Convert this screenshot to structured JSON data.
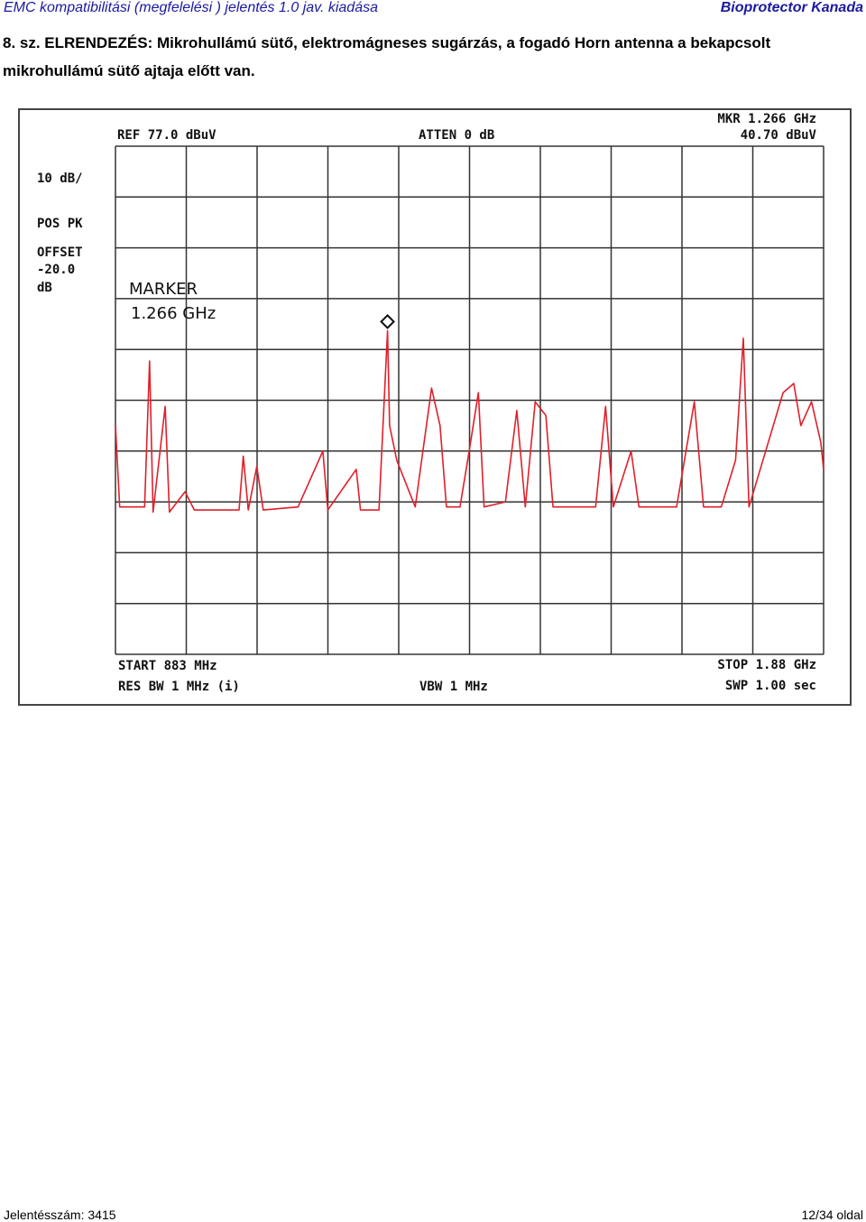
{
  "header": {
    "left": "EMC kompatibilitási (megfelelési ) jelentés 1.0 jav. kiadása",
    "right": "Bioprotector Kanada"
  },
  "heading": "8. sz. ELRENDEZÉS: Mikrohullámú sütő, elektromágneses sugárzás, a fogadó Horn antenna a bekapcsolt mikrohullámú sütő ajtaja előtt van.",
  "chart_data": {
    "type": "line",
    "annotations": [
      "REF 77.0 dBuV",
      "ATTEN 0 dB",
      "MKR 1.266 GHz",
      "40.70 dBuV",
      "10 dB/",
      "POS PK",
      "OFFSET",
      "-20.0",
      "dB",
      "MARKER",
      "1.266 GHz",
      "START 883 MHz",
      "RES BW 1 MHz (i)",
      "VBW 1 MHz",
      "STOP 1.88 GHz",
      "SWP 1.00 sec"
    ],
    "x": [
      883,
      889,
      924,
      931,
      936,
      953,
      959,
      981,
      994,
      1057,
      1063,
      1070,
      1082,
      1091,
      1140,
      1175,
      1182,
      1222,
      1228,
      1254,
      1266,
      1269,
      1279,
      1305,
      1328,
      1340,
      1349,
      1368,
      1381,
      1394,
      1402,
      1432,
      1448,
      1460,
      1474,
      1489,
      1499,
      1559,
      1573,
      1584,
      1609,
      1620,
      1673,
      1698,
      1711,
      1736,
      1756,
      1767,
      1775,
      1823,
      1838,
      1848,
      1863,
      1876,
      1880
    ],
    "values": [
      22,
      6,
      6,
      34.7,
      5,
      25.8,
      5,
      9,
      5.4,
      5.4,
      16,
      5.4,
      14,
      5.4,
      6,
      17,
      5.4,
      13.4,
      5.4,
      5.4,
      40.7,
      22,
      15.2,
      6,
      29.4,
      22,
      6,
      6,
      17,
      28.5,
      6,
      7,
      25,
      6,
      26.7,
      24,
      6,
      6,
      25.8,
      6,
      17,
      6,
      6,
      26.7,
      6,
      6,
      15.2,
      39.2,
      6,
      28.5,
      30.3,
      22,
      26.7,
      18.7,
      13.4
    ],
    "color": "#e0202a",
    "xlim": [
      883,
      1880
    ],
    "ylim": [
      -23,
      77
    ],
    "xticks": [
      883,
      982.7,
      1082.4,
      1182.1,
      1281.8,
      1381.5,
      1481.2,
      1580.9,
      1680.6,
      1780.3,
      1880
    ],
    "yticks": [
      -23,
      -13,
      -3,
      7,
      17,
      27,
      37,
      47,
      57,
      67,
      77
    ],
    "grid": true,
    "marker": {
      "x": 1266,
      "value": 40.7
    }
  },
  "footer": {
    "left": "Jelentésszám: 3415",
    "right": "12/34 oldal"
  }
}
